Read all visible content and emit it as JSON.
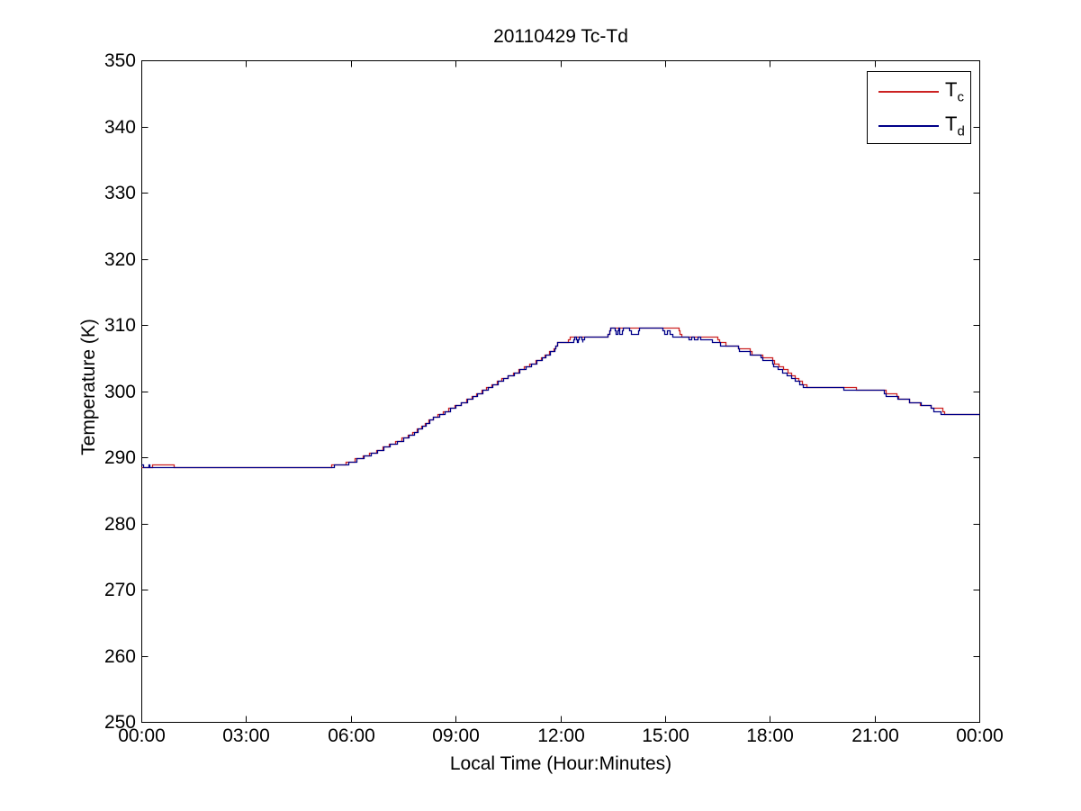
{
  "chart_data": {
    "type": "line",
    "title": "20110429 Tc-Td",
    "xlabel": "Local Time (Hour:Minutes)",
    "ylabel": "Temperature (K)",
    "xlim_hours": [
      0,
      24
    ],
    "ylim": [
      250,
      350
    ],
    "grid": false,
    "axis_color": "#000000",
    "background_color": "#ffffff",
    "legend_position": "top-right",
    "quantize_step_K": 0.45,
    "x_ticks": [
      {
        "hour": 0,
        "label": "00:00"
      },
      {
        "hour": 3,
        "label": "03:00"
      },
      {
        "hour": 6,
        "label": "06:00"
      },
      {
        "hour": 9,
        "label": "09:00"
      },
      {
        "hour": 12,
        "label": "12:00"
      },
      {
        "hour": 15,
        "label": "15:00"
      },
      {
        "hour": 18,
        "label": "18:00"
      },
      {
        "hour": 21,
        "label": "21:00"
      },
      {
        "hour": 24,
        "label": "00:00"
      }
    ],
    "y_ticks": [
      250,
      260,
      270,
      280,
      290,
      300,
      310,
      320,
      330,
      340,
      350
    ],
    "series": [
      {
        "name": "Tc",
        "label_main": "T",
        "label_sub": "c",
        "color": "#cc2222",
        "points": [
          [
            0,
            288.6
          ],
          [
            0.28,
            288.6
          ],
          [
            0.32,
            288.85
          ],
          [
            0.88,
            288.85
          ],
          [
            0.95,
            288.35
          ],
          [
            5.3,
            288.35
          ],
          [
            5.45,
            288.7
          ],
          [
            5.9,
            289.2
          ],
          [
            6.2,
            289.75
          ],
          [
            6.55,
            290.55
          ],
          [
            6.9,
            291.4
          ],
          [
            7.25,
            292.25
          ],
          [
            7.6,
            293.1
          ],
          [
            7.95,
            294.3
          ],
          [
            8.35,
            296.0
          ],
          [
            8.9,
            297.5
          ],
          [
            9.4,
            298.9
          ],
          [
            9.9,
            300.45
          ],
          [
            10.4,
            302.0
          ],
          [
            10.9,
            303.4
          ],
          [
            11.4,
            304.8
          ],
          [
            11.8,
            306.3
          ],
          [
            11.95,
            307.4
          ],
          [
            12.2,
            307.4
          ],
          [
            12.28,
            308.4
          ],
          [
            13.35,
            308.4
          ],
          [
            13.45,
            309.5
          ],
          [
            15.35,
            309.5
          ],
          [
            15.45,
            308.4
          ],
          [
            16.45,
            308.4
          ],
          [
            16.55,
            307.4
          ],
          [
            16.78,
            307.0
          ],
          [
            17.05,
            307.0
          ],
          [
            17.15,
            306.3
          ],
          [
            17.4,
            306.3
          ],
          [
            17.5,
            305.6
          ],
          [
            17.75,
            305.6
          ],
          [
            17.85,
            304.9
          ],
          [
            18.05,
            304.9
          ],
          [
            18.15,
            304.2
          ],
          [
            18.4,
            303.4
          ],
          [
            18.7,
            302.2
          ],
          [
            19.0,
            300.9
          ],
          [
            19.1,
            300.75
          ],
          [
            20.4,
            300.75
          ],
          [
            20.48,
            300.15
          ],
          [
            21.28,
            300.15
          ],
          [
            21.36,
            299.6
          ],
          [
            21.6,
            299.6
          ],
          [
            21.68,
            299.0
          ],
          [
            21.92,
            299.0
          ],
          [
            22.0,
            298.45
          ],
          [
            22.25,
            298.45
          ],
          [
            22.33,
            297.9
          ],
          [
            22.58,
            297.9
          ],
          [
            22.66,
            297.3
          ],
          [
            22.92,
            297.3
          ],
          [
            23.0,
            296.6
          ],
          [
            24,
            296.6
          ]
        ]
      },
      {
        "name": "Td",
        "label_main": "T",
        "label_sub": "d",
        "color": "#000088",
        "points": [
          [
            0,
            288.75
          ],
          [
            0.12,
            288.35
          ],
          [
            0.2,
            288.75
          ],
          [
            0.28,
            288.35
          ],
          [
            5.3,
            288.35
          ],
          [
            5.45,
            288.6
          ],
          [
            5.9,
            289.1
          ],
          [
            6.2,
            289.65
          ],
          [
            6.55,
            290.45
          ],
          [
            6.9,
            291.3
          ],
          [
            7.25,
            292.15
          ],
          [
            7.6,
            293.0
          ],
          [
            7.95,
            294.2
          ],
          [
            8.35,
            295.9
          ],
          [
            8.9,
            297.4
          ],
          [
            9.4,
            298.8
          ],
          [
            9.9,
            300.35
          ],
          [
            10.4,
            301.9
          ],
          [
            10.9,
            303.3
          ],
          [
            11.4,
            304.7
          ],
          [
            11.8,
            306.2
          ],
          [
            11.95,
            307.4
          ],
          [
            12.35,
            307.4
          ],
          [
            12.42,
            308.4
          ],
          [
            12.48,
            307.4
          ],
          [
            12.56,
            308.4
          ],
          [
            12.62,
            307.4
          ],
          [
            12.7,
            308.4
          ],
          [
            13.35,
            308.4
          ],
          [
            13.45,
            309.5
          ],
          [
            13.55,
            309.5
          ],
          [
            13.6,
            308.5
          ],
          [
            13.66,
            309.5
          ],
          [
            13.72,
            308.5
          ],
          [
            13.78,
            309.5
          ],
          [
            13.95,
            309.5
          ],
          [
            14.02,
            308.7
          ],
          [
            14.2,
            308.7
          ],
          [
            14.27,
            309.5
          ],
          [
            14.9,
            309.5
          ],
          [
            15.0,
            308.6
          ],
          [
            15.1,
            309.2
          ],
          [
            15.2,
            308.4
          ],
          [
            15.62,
            308.4
          ],
          [
            15.7,
            307.7
          ],
          [
            15.78,
            308.3
          ],
          [
            15.86,
            307.7
          ],
          [
            15.95,
            308.3
          ],
          [
            16.05,
            307.7
          ],
          [
            16.5,
            307.5
          ],
          [
            16.62,
            306.9
          ],
          [
            17.05,
            306.9
          ],
          [
            17.12,
            306.1
          ],
          [
            17.38,
            306.1
          ],
          [
            17.45,
            305.4
          ],
          [
            17.72,
            305.4
          ],
          [
            17.8,
            304.7
          ],
          [
            18.02,
            304.7
          ],
          [
            18.1,
            303.9
          ],
          [
            18.38,
            303.0
          ],
          [
            18.68,
            301.8
          ],
          [
            18.98,
            300.7
          ],
          [
            20.05,
            300.7
          ],
          [
            20.12,
            300.1
          ],
          [
            21.25,
            300.1
          ],
          [
            21.32,
            299.4
          ],
          [
            21.6,
            299.4
          ],
          [
            21.68,
            298.8
          ],
          [
            21.95,
            298.8
          ],
          [
            22.02,
            298.3
          ],
          [
            22.28,
            298.3
          ],
          [
            22.35,
            297.7
          ],
          [
            22.6,
            297.7
          ],
          [
            22.68,
            297.1
          ],
          [
            22.85,
            297.1
          ],
          [
            22.92,
            296.55
          ],
          [
            24,
            296.55
          ]
        ]
      }
    ]
  }
}
